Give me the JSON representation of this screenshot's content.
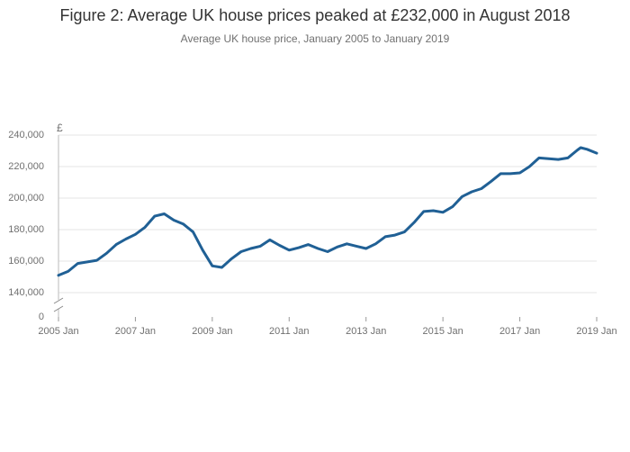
{
  "chart_data": {
    "type": "line",
    "title": "Figure 2: Average UK house prices peaked at £232,000 in August 2018",
    "subtitle": "Average UK house price, January 2005 to January 2019",
    "y_unit": "£",
    "x": [
      "2005-01",
      "2005-04",
      "2005-07",
      "2005-10",
      "2006-01",
      "2006-04",
      "2006-07",
      "2006-10",
      "2007-01",
      "2007-04",
      "2007-07",
      "2007-10",
      "2008-01",
      "2008-04",
      "2008-07",
      "2008-10",
      "2009-01",
      "2009-04",
      "2009-07",
      "2009-10",
      "2010-01",
      "2010-04",
      "2010-07",
      "2010-10",
      "2011-01",
      "2011-04",
      "2011-07",
      "2011-10",
      "2012-01",
      "2012-04",
      "2012-07",
      "2012-10",
      "2013-01",
      "2013-04",
      "2013-07",
      "2013-10",
      "2014-01",
      "2014-04",
      "2014-07",
      "2014-10",
      "2015-01",
      "2015-04",
      "2015-07",
      "2015-10",
      "2016-01",
      "2016-04",
      "2016-07",
      "2016-10",
      "2017-01",
      "2017-04",
      "2017-07",
      "2017-10",
      "2018-01",
      "2018-04",
      "2018-07",
      "2018-08",
      "2018-10",
      "2019-01"
    ],
    "series": [
      {
        "name": "Average house price",
        "color": "#206095",
        "values": [
          151000,
          153500,
          158500,
          159500,
          160500,
          165000,
          170500,
          174000,
          177000,
          181500,
          188500,
          190000,
          186000,
          183500,
          178500,
          167000,
          157000,
          156000,
          161500,
          166000,
          168000,
          169500,
          173500,
          170000,
          167000,
          168500,
          170500,
          168000,
          166000,
          169000,
          171000,
          169500,
          168000,
          171000,
          175500,
          176500,
          178500,
          184500,
          191500,
          192000,
          191000,
          194500,
          201000,
          204000,
          206000,
          210500,
          215500,
          215500,
          216000,
          220000,
          225500,
          225000,
          224500,
          225500,
          230500,
          232000,
          231000,
          228500
        ]
      }
    ],
    "xlim": [
      "2005-01",
      "2019-01"
    ],
    "xticks": [
      {
        "value": "2005-01",
        "label": "2005 Jan"
      },
      {
        "value": "2007-01",
        "label": "2007 Jan"
      },
      {
        "value": "2009-01",
        "label": "2009 Jan"
      },
      {
        "value": "2011-01",
        "label": "2011 Jan"
      },
      {
        "value": "2013-01",
        "label": "2013 Jan"
      },
      {
        "value": "2015-01",
        "label": "2015 Jan"
      },
      {
        "value": "2017-01",
        "label": "2017 Jan"
      },
      {
        "value": "2019-01",
        "label": "2019 Jan"
      }
    ],
    "ylim": [
      0,
      240000
    ],
    "yticks": [
      0,
      {
        "value": 140000,
        "label": "140,000"
      },
      {
        "value": 160000,
        "label": "160,000"
      },
      {
        "value": 180000,
        "label": "180,000"
      },
      {
        "value": 200000,
        "label": "200,000"
      },
      {
        "value": 220000,
        "label": "220,000"
      },
      {
        "value": 240000,
        "label": "240,000"
      }
    ],
    "y_axis_break": true,
    "grid": true
  }
}
